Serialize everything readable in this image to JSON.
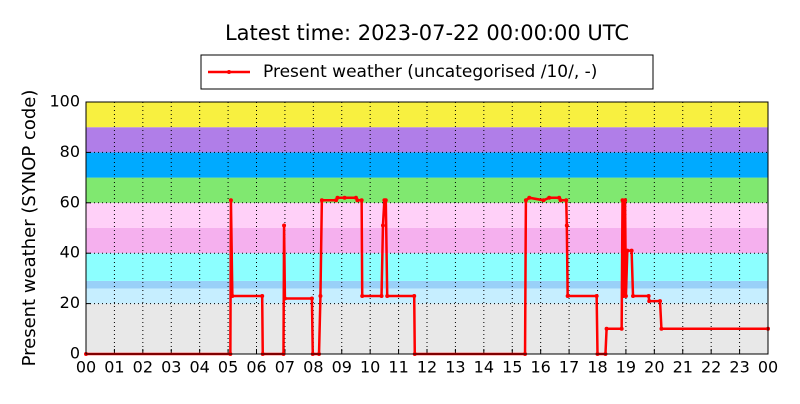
{
  "chart_data": {
    "type": "line",
    "title": "Latest time: 2023-07-22 00:00:00 UTC",
    "y_label": "Present weather (SYNOP code)",
    "legend": "top",
    "grid": true,
    "xlim": [
      0,
      24
    ],
    "ylim": [
      0,
      100
    ],
    "xticks": [
      {
        "value": 0,
        "label": "00"
      },
      {
        "value": 1,
        "label": "01"
      },
      {
        "value": 2,
        "label": "02"
      },
      {
        "value": 3,
        "label": "03"
      },
      {
        "value": 4,
        "label": "04"
      },
      {
        "value": 5,
        "label": "05"
      },
      {
        "value": 6,
        "label": "06"
      },
      {
        "value": 7,
        "label": "07"
      },
      {
        "value": 8,
        "label": "08"
      },
      {
        "value": 9,
        "label": "09"
      },
      {
        "value": 10,
        "label": "10"
      },
      {
        "value": 11,
        "label": "11"
      },
      {
        "value": 12,
        "label": "12"
      },
      {
        "value": 13,
        "label": "13"
      },
      {
        "value": 14,
        "label": "14"
      },
      {
        "value": 15,
        "label": "15"
      },
      {
        "value": 16,
        "label": "16"
      },
      {
        "value": 17,
        "label": "17"
      },
      {
        "value": 18,
        "label": "18"
      },
      {
        "value": 19,
        "label": "19"
      },
      {
        "value": 20,
        "label": "20"
      },
      {
        "value": 21,
        "label": "21"
      },
      {
        "value": 22,
        "label": "22"
      },
      {
        "value": 23,
        "label": "23"
      },
      {
        "value": 24,
        "label": "00"
      }
    ],
    "yticks": [
      0,
      20,
      40,
      60,
      80,
      100
    ],
    "bands": [
      {
        "from": 0,
        "to": 20,
        "color": "#e8e8e8"
      },
      {
        "from": 20,
        "to": 26,
        "color": "#c6eeff"
      },
      {
        "from": 26,
        "to": 29,
        "color": "#99d0f8"
      },
      {
        "from": 29,
        "to": 40,
        "color": "#8cffff"
      },
      {
        "from": 40,
        "to": 50,
        "color": "#f5b0ee"
      },
      {
        "from": 50,
        "to": 60,
        "color": "#ffd0f8"
      },
      {
        "from": 60,
        "to": 70,
        "color": "#80e870"
      },
      {
        "from": 70,
        "to": 80,
        "color": "#00aaff"
      },
      {
        "from": 80,
        "to": 90,
        "color": "#b07ee8"
      },
      {
        "from": 90,
        "to": 100,
        "color": "#f8f040"
      }
    ],
    "x": [
      0,
      5.08,
      5.1,
      5.15,
      6.2,
      6.22,
      6.95,
      6.97,
      7.0,
      7.95,
      7.98,
      8.2,
      8.25,
      8.3,
      8.8,
      8.85,
      9.1,
      9.5,
      9.55,
      9.7,
      9.72,
      10.4,
      10.45,
      10.5,
      10.55,
      10.6,
      11.55,
      11.57,
      15.45,
      15.48,
      15.6,
      16.1,
      16.3,
      16.65,
      16.7,
      16.9,
      16.92,
      16.95,
      17.97,
      18.0,
      18.28,
      18.32,
      18.85,
      18.88,
      18.92,
      18.97,
      19.0,
      19.05,
      19.2,
      19.25,
      19.8,
      19.82,
      20.2,
      20.25,
      24
    ],
    "series": [
      {
        "name": "Present weather (uncategorised /10/, -)",
        "color": "#ff0000",
        "values": [
          0,
          0,
          61,
          23,
          23,
          0,
          0,
          51,
          22,
          22,
          0,
          0,
          23,
          61,
          61,
          62,
          62,
          62,
          61,
          61,
          23,
          23,
          51,
          61,
          61,
          23,
          23,
          0,
          0,
          61,
          62,
          61,
          62,
          62,
          61,
          61,
          51,
          23,
          23,
          0,
          0,
          10,
          10,
          61,
          23,
          61,
          23,
          41,
          41,
          23,
          23,
          21,
          21,
          10,
          10
        ]
      }
    ]
  }
}
